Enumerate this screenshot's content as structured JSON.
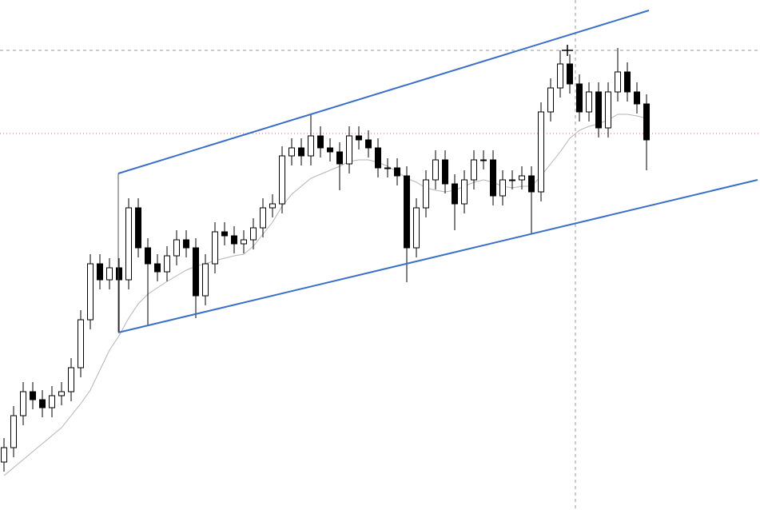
{
  "chart_data": {
    "type": "candlestick",
    "ylim": [
      0,
      638
    ],
    "up_color": "#ffffff",
    "down_color": "#000000",
    "edge_color": "#000000",
    "open": [
      60,
      78,
      118,
      148,
      138,
      128,
      143,
      148,
      178,
      238,
      308,
      288,
      303,
      288,
      378,
      328,
      308,
      298,
      318,
      338,
      328,
      268,
      308,
      348,
      343,
      333,
      338,
      353,
      378,
      383,
      443,
      453,
      443,
      468,
      453,
      448,
      433,
      468,
      463,
      453,
      428,
      428,
      418,
      328,
      378,
      413,
      438,
      408,
      383,
      413,
      438,
      438,
      393,
      413,
      413,
      418,
      398,
      498,
      528,
      558,
      533,
      498,
      523,
      478,
      523,
      548,
      523,
      508
    ],
    "high": [
      90,
      130,
      160,
      160,
      150,
      155,
      160,
      190,
      250,
      320,
      320,
      315,
      315,
      390,
      390,
      340,
      320,
      330,
      350,
      350,
      340,
      320,
      360,
      360,
      355,
      350,
      365,
      390,
      395,
      455,
      465,
      465,
      495,
      480,
      465,
      460,
      480,
      480,
      475,
      465,
      440,
      440,
      430,
      390,
      425,
      450,
      450,
      420,
      425,
      450,
      450,
      450,
      425,
      425,
      430,
      430,
      510,
      540,
      575,
      570,
      545,
      535,
      535,
      535,
      578,
      560,
      535,
      520
    ],
    "low": [
      48,
      66,
      106,
      126,
      116,
      116,
      131,
      136,
      166,
      226,
      276,
      276,
      222,
      276,
      316,
      230,
      286,
      286,
      306,
      316,
      240,
      256,
      296,
      331,
      321,
      321,
      326,
      341,
      366,
      371,
      431,
      431,
      431,
      441,
      436,
      400,
      421,
      451,
      441,
      416,
      416,
      406,
      285,
      316,
      366,
      401,
      396,
      350,
      371,
      401,
      426,
      381,
      381,
      401,
      401,
      346,
      386,
      486,
      516,
      521,
      486,
      486,
      466,
      466,
      511,
      511,
      496,
      425
    ],
    "close": [
      78,
      118,
      148,
      138,
      128,
      143,
      148,
      178,
      238,
      308,
      288,
      303,
      288,
      378,
      328,
      308,
      298,
      318,
      338,
      328,
      268,
      308,
      348,
      343,
      333,
      338,
      353,
      378,
      383,
      443,
      453,
      443,
      468,
      453,
      448,
      433,
      468,
      463,
      453,
      428,
      428,
      418,
      328,
      378,
      413,
      438,
      408,
      383,
      413,
      438,
      438,
      393,
      413,
      413,
      418,
      398,
      498,
      528,
      558,
      533,
      498,
      523,
      478,
      523,
      548,
      523,
      508,
      463
    ],
    "ma": {
      "color": "#b4b4b4",
      "values": [
        43,
        53,
        63,
        73,
        83,
        93,
        103,
        118,
        133,
        150,
        175,
        200,
        218,
        240,
        258,
        270,
        278,
        286,
        293,
        300,
        305,
        308,
        312,
        315,
        318,
        320,
        330,
        345,
        360,
        380,
        395,
        405,
        415,
        420,
        425,
        430,
        436,
        438,
        438,
        435,
        430,
        423,
        415,
        410,
        403,
        400,
        398,
        400,
        405,
        410,
        413,
        410,
        405,
        403,
        405,
        405,
        418,
        433,
        448,
        465,
        475,
        480,
        483,
        488,
        495,
        495,
        493,
        490
      ]
    }
  }
}
